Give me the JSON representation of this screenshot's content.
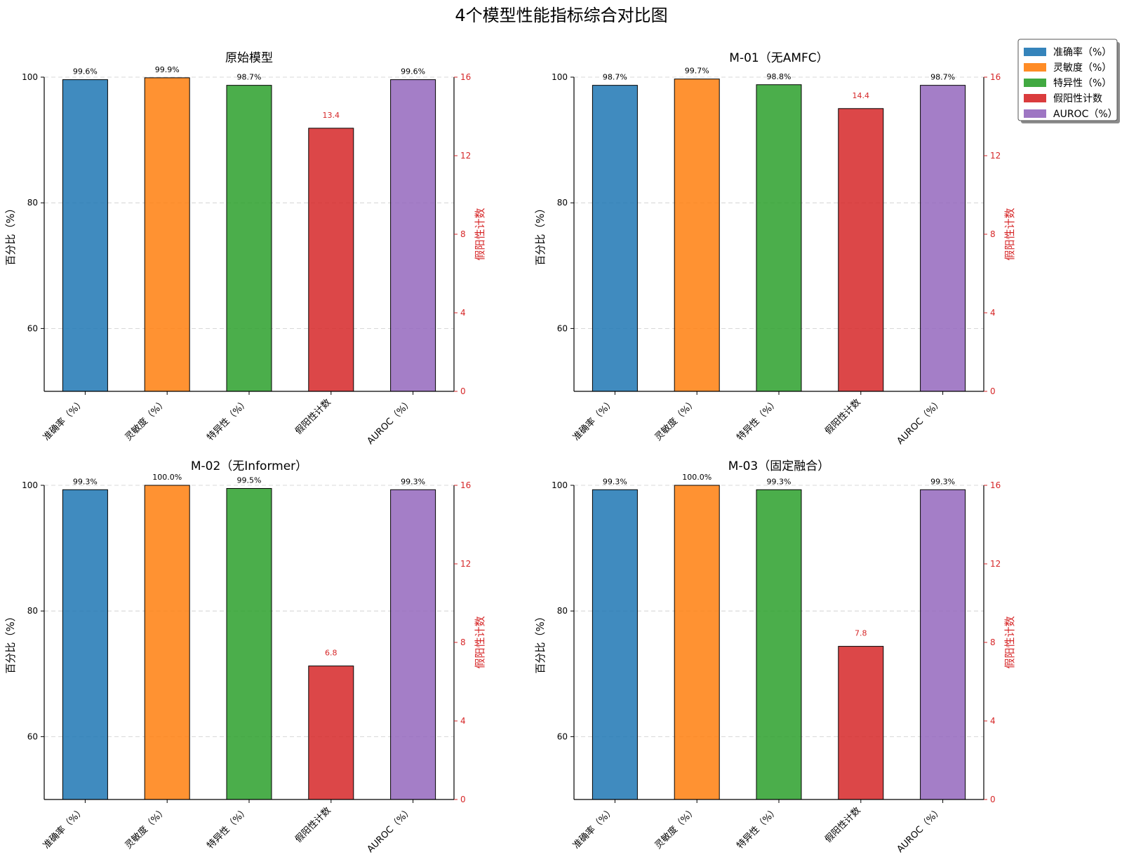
{
  "chart_data": {
    "type": "bar",
    "title": "4个模型性能指标综合对比图",
    "categories": [
      "准确率（%）",
      "灵敏度（%）",
      "特异性（%）",
      "假阳性计数",
      "AUROC（%）"
    ],
    "colors": [
      "#1f77b4",
      "#ff7f0e",
      "#2ca02c",
      "#d62728",
      "#9467bd"
    ],
    "secondary_color": "#d62728",
    "ylabel": "百分比（%）",
    "ylabel_right": "假阳性计数",
    "ylim": [
      50,
      100
    ],
    "ylim_right": [
      0,
      16
    ],
    "yticks": [
      60,
      80,
      100
    ],
    "yticks_right": [
      0,
      4,
      8,
      12,
      16
    ],
    "secondary_index": 3,
    "legend": {
      "location": "upper-right",
      "entries": [
        "准确率（%）",
        "灵敏度（%）",
        "特异性（%）",
        "假阳性计数",
        "AUROC（%）"
      ]
    },
    "panels": [
      {
        "title": "原始模型",
        "values": [
          99.6,
          99.9,
          98.7,
          13.4,
          99.6
        ],
        "labels": [
          "99.6%",
          "99.9%",
          "98.7%",
          "13.4",
          "99.6%"
        ]
      },
      {
        "title": "M-01（无AMFC）",
        "values": [
          98.7,
          99.7,
          98.8,
          14.4,
          98.7
        ],
        "labels": [
          "98.7%",
          "99.7%",
          "98.8%",
          "14.4",
          "98.7%"
        ]
      },
      {
        "title": "M-02（无Informer）",
        "values": [
          99.3,
          100.0,
          99.5,
          6.8,
          99.3
        ],
        "labels": [
          "99.3%",
          "100.0%",
          "99.5%",
          "6.8",
          "99.3%"
        ]
      },
      {
        "title": "M-03（固定融合）",
        "values": [
          99.3,
          100.0,
          99.3,
          7.8,
          99.3
        ],
        "labels": [
          "99.3%",
          "100.0%",
          "99.3%",
          "7.8",
          "99.3%"
        ]
      }
    ]
  }
}
